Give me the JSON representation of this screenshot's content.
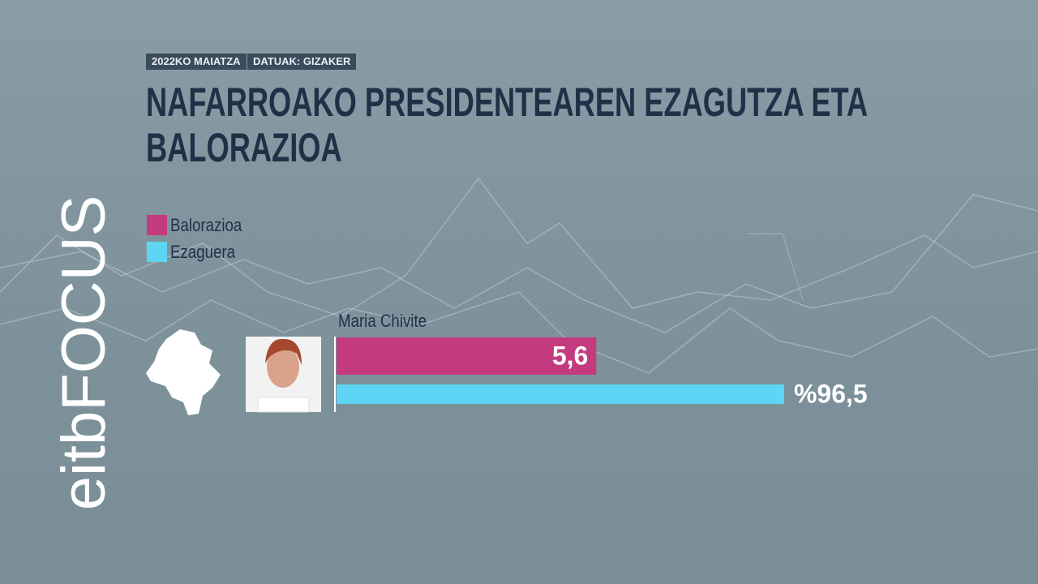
{
  "logo": "eitbFOCUS",
  "chart_data": {
    "type": "bar",
    "orientation": "horizontal",
    "date": "2022KO MAIATZA",
    "source": "DATUAK: GIZAKER",
    "title": "NAFARROAKO PRESIDENTEAREN EZAGUTZA ETA BALORAZIOA",
    "categories": [
      "Maria Chivite"
    ],
    "series": [
      {
        "name": "Balorazioa",
        "color": "#c43a7e",
        "values": [
          5.6
        ],
        "value_labels": [
          "5,6"
        ],
        "xlim": [
          0,
          10
        ]
      },
      {
        "name": "Ezaguera",
        "color": "#5fd5f6",
        "values": [
          96.5
        ],
        "value_labels": [
          "%96,5"
        ],
        "xlim": [
          0,
          100
        ]
      }
    ]
  }
}
